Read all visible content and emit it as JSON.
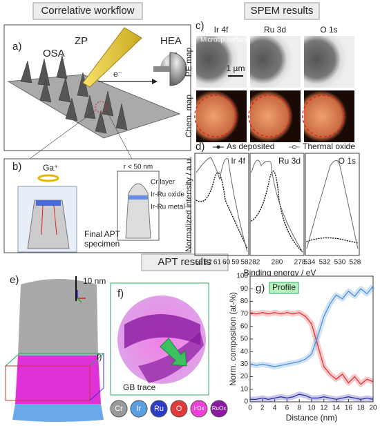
{
  "headers": {
    "workflow": "Correlative workflow",
    "spem": "SPEM results",
    "apt": "APT results"
  },
  "panel_a": {
    "label": "a)",
    "zp": "ZP",
    "osa": "OSA",
    "electron": "e⁻",
    "hea": "HEA"
  },
  "panel_b": {
    "label": "b)",
    "ion": "Ga⁺",
    "radius": "r < 50 nm",
    "layers": [
      "Cr layer",
      "Ir-Ru oxide",
      "Ir-Ru metal"
    ],
    "specimen": [
      "Final APT",
      "specimen"
    ]
  },
  "panel_c": {
    "label": "c)",
    "columns": [
      "Ir 4f",
      "Ru 3d",
      "O 1s"
    ],
    "rows": [
      "PE map",
      "Chem. map"
    ],
    "annotation": "Microtip surface",
    "scale_bar": "1 µm"
  },
  "panel_d": {
    "label": "d)",
    "legend": [
      "As deposited",
      "Thermal oxide"
    ],
    "panels": [
      {
        "name": "Ir 4f",
        "ticks": [
          63,
          62,
          61,
          60,
          59,
          58
        ]
      },
      {
        "name": "Ru 3d",
        "ticks": [
          282,
          280,
          278
        ]
      },
      {
        "name": "O 1s",
        "ticks": [
          534,
          532,
          530,
          528
        ]
      }
    ],
    "x_label": "Binding energy / eV",
    "y_label": "Normalized intensity / a.u."
  },
  "panel_e": {
    "label": "e)",
    "scale_bar": "10 nm",
    "ref": "f)"
  },
  "panel_f": {
    "label": "f)",
    "annotation": "GB trace"
  },
  "legend": [
    {
      "name": "Cr",
      "color": "#9a9a9a"
    },
    {
      "name": "Ir",
      "color": "#5aa0e0"
    },
    {
      "name": "Ru",
      "color": "#2a3cc8"
    },
    {
      "name": "O",
      "color": "#e03a3a"
    },
    {
      "name": "IrOx",
      "color": "#f040d8"
    },
    {
      "name": "RuOx",
      "color": "#8a1aa0"
    }
  ],
  "chart_data": {
    "type": "line",
    "title": "g)",
    "annotation": "Profile",
    "x_label": "Distance (nm)",
    "y_label": "Norm. composition (at-%)",
    "x": [
      0,
      1,
      2,
      3,
      4,
      5,
      6,
      7,
      8,
      9,
      10,
      11,
      12,
      13,
      14,
      15,
      16,
      17,
      18,
      19,
      20
    ],
    "series": [
      {
        "color": "#e03030",
        "values": [
          71,
          70,
          71,
          70,
          71,
          70,
          71,
          70,
          71,
          68,
          62,
          45,
          28,
          22,
          18,
          22,
          15,
          20,
          14,
          18,
          16
        ]
      },
      {
        "color": "#4a90d9",
        "values": [
          30,
          29,
          30,
          29,
          28,
          29,
          30,
          31,
          32,
          34,
          38,
          52,
          68,
          78,
          85,
          82,
          88,
          84,
          90,
          86,
          92
        ]
      },
      {
        "color": "#2a2aa8",
        "values": [
          2,
          2,
          3,
          2,
          3,
          4,
          3,
          4,
          6,
          5,
          3,
          3,
          4,
          3,
          2,
          3,
          4,
          3,
          2,
          3,
          2
        ]
      }
    ],
    "xlim": [
      0,
      20
    ],
    "ylim": [
      0,
      100
    ],
    "xticks": [
      0,
      2,
      4,
      6,
      8,
      10,
      12,
      14,
      16,
      18,
      20
    ],
    "yticks": [
      0,
      10,
      20,
      30,
      40,
      50,
      60,
      70,
      80,
      90,
      100
    ]
  }
}
